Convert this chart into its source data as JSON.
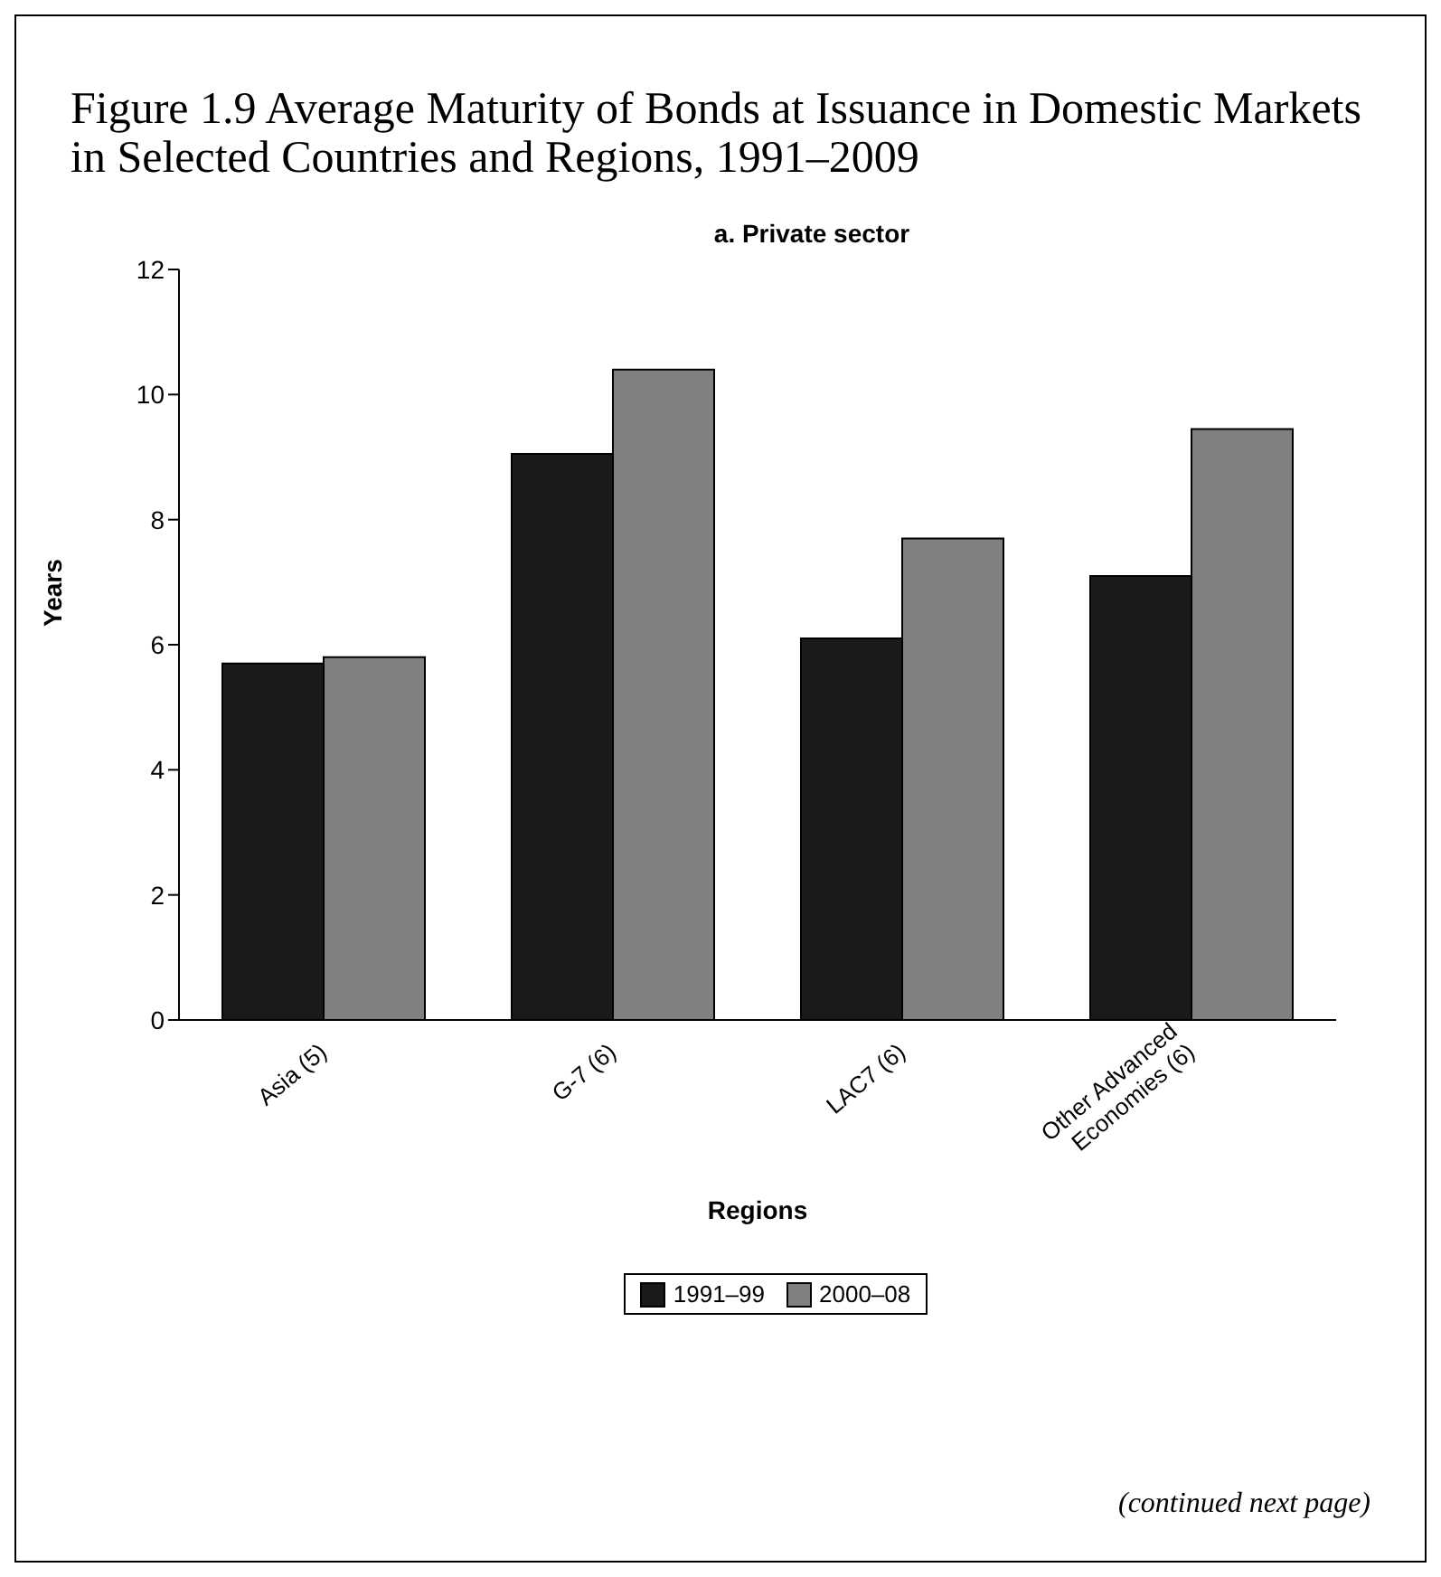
{
  "chart_data": {
    "type": "bar",
    "title": "Figure 1.9 Average Maturity of Bonds at Issuance in Domestic Markets in Selected Countries and Regions, 1991–2009",
    "subtitle": "a. Private sector",
    "xlabel": "Regions",
    "ylabel": "Years",
    "categories": [
      "Asia (5)",
      "G-7 (6)",
      "LAC7 (6)",
      "Other Advanced Economies (6)"
    ],
    "series": [
      {
        "name": "1991–99",
        "color": "#1a1a1a",
        "values": [
          5.7,
          9.05,
          6.1,
          7.1
        ]
      },
      {
        "name": "2000–08",
        "color": "#808080",
        "values": [
          5.8,
          10.4,
          7.7,
          9.45
        ]
      }
    ],
    "ylim": [
      0,
      12
    ],
    "yticks": [
      0,
      2,
      4,
      6,
      8,
      10,
      12
    ],
    "legend": "bottom",
    "annotations": [
      "(continued next page)"
    ]
  }
}
